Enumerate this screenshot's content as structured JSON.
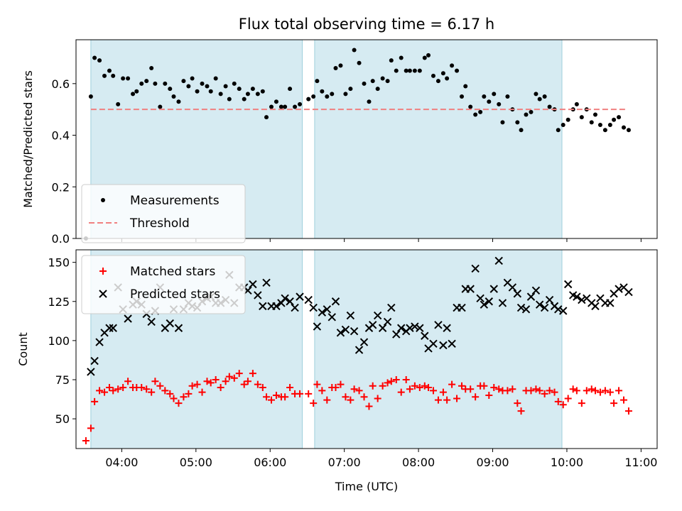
{
  "chart_data": [
    {
      "type": "scatter",
      "title": "Flux total observing time = 6.17 h",
      "xlabel": "",
      "ylabel": "Matched/Predicted stars",
      "xlim": [
        "03:23",
        "11:13"
      ],
      "ylim": [
        0,
        0.77
      ],
      "yticks": [
        0.0,
        0.2,
        0.4,
        0.6
      ],
      "ytick_labels": [
        "0.0",
        "0.2",
        "0.4",
        "0.6"
      ],
      "xticks": [
        "04:00",
        "05:00",
        "06:00",
        "07:00",
        "08:00",
        "09:00",
        "10:00",
        "11:00"
      ],
      "shaded_intervals": [
        [
          "03:35",
          "06:26"
        ],
        [
          "06:36",
          "09:56"
        ]
      ],
      "legend": {
        "location": "lower-left"
      },
      "series": [
        {
          "name": "Measurements",
          "marker": "dot",
          "color": "#000000",
          "x": [
            "03:31",
            "03:35",
            "03:38",
            "03:42",
            "03:46",
            "03:50",
            "03:53",
            "03:57",
            "04:01",
            "04:05",
            "04:09",
            "04:12",
            "04:16",
            "04:20",
            "04:24",
            "04:27",
            "04:31",
            "04:35",
            "04:39",
            "04:42",
            "04:46",
            "04:50",
            "04:54",
            "04:57",
            "05:01",
            "05:05",
            "05:09",
            "05:12",
            "05:16",
            "05:20",
            "05:24",
            "05:27",
            "05:31",
            "05:35",
            "05:39",
            "05:42",
            "05:46",
            "05:50",
            "05:54",
            "05:57",
            "06:01",
            "06:05",
            "06:09",
            "06:12",
            "06:16",
            "06:20",
            "06:24",
            "06:31",
            "06:35",
            "06:38",
            "06:42",
            "06:46",
            "06:50",
            "06:53",
            "06:57",
            "07:01",
            "07:05",
            "07:08",
            "07:12",
            "07:16",
            "07:20",
            "07:23",
            "07:27",
            "07:31",
            "07:35",
            "07:38",
            "07:42",
            "07:46",
            "07:50",
            "07:53",
            "07:57",
            "08:01",
            "08:05",
            "08:08",
            "08:12",
            "08:16",
            "08:20",
            "08:23",
            "08:27",
            "08:31",
            "08:35",
            "08:38",
            "08:42",
            "08:46",
            "08:50",
            "08:53",
            "08:57",
            "09:01",
            "09:05",
            "09:08",
            "09:12",
            "09:16",
            "09:20",
            "09:23",
            "09:27",
            "09:31",
            "09:35",
            "09:38",
            "09:42",
            "09:46",
            "09:50",
            "09:53",
            "09:57",
            "10:01",
            "10:05",
            "10:08",
            "10:12",
            "10:16",
            "10:20",
            "10:23",
            "10:27",
            "10:31",
            "10:35",
            "10:38",
            "10:42",
            "10:46",
            "10:50"
          ],
          "y": [
            0.0,
            0.55,
            0.7,
            0.69,
            0.63,
            0.65,
            0.63,
            0.52,
            0.62,
            0.62,
            0.56,
            0.57,
            0.6,
            0.61,
            0.66,
            0.6,
            0.51,
            0.6,
            0.58,
            0.55,
            0.53,
            0.61,
            0.59,
            0.62,
            0.57,
            0.6,
            0.59,
            0.57,
            0.62,
            0.56,
            0.59,
            0.54,
            0.6,
            0.58,
            0.54,
            0.56,
            0.58,
            0.56,
            0.57,
            0.47,
            0.51,
            0.53,
            0.51,
            0.51,
            0.58,
            0.51,
            0.52,
            0.54,
            0.55,
            0.61,
            0.57,
            0.55,
            0.56,
            0.66,
            0.67,
            0.56,
            0.58,
            0.73,
            0.68,
            0.6,
            0.53,
            0.61,
            0.58,
            0.62,
            0.61,
            0.69,
            0.65,
            0.7,
            0.65,
            0.65,
            0.65,
            0.65,
            0.7,
            0.71,
            0.63,
            0.61,
            0.64,
            0.62,
            0.67,
            0.65,
            0.55,
            0.59,
            0.51,
            0.48,
            0.49,
            0.55,
            0.53,
            0.56,
            0.52,
            0.45,
            0.55,
            0.5,
            0.45,
            0.42,
            0.48,
            0.49,
            0.56,
            0.54,
            0.55,
            0.51,
            0.5,
            0.42,
            0.44,
            0.46,
            0.5,
            0.52,
            0.47,
            0.5,
            0.45,
            0.48,
            0.44,
            0.42,
            0.44,
            0.46,
            0.47,
            0.43,
            0.42
          ]
        },
        {
          "name": "Threshold",
          "type": "line",
          "style": "dashed",
          "color": "#f08080",
          "x": [
            "03:35",
            "10:49"
          ],
          "y": [
            0.5,
            0.5
          ]
        }
      ]
    },
    {
      "type": "scatter",
      "title": "",
      "xlabel": "Time (UTC)",
      "ylabel": "Count",
      "xlim": [
        "03:23",
        "11:13"
      ],
      "ylim": [
        31,
        158
      ],
      "yticks": [
        50,
        75,
        100,
        125,
        150
      ],
      "ytick_labels": [
        "50",
        "75",
        "100",
        "125",
        "150"
      ],
      "xticks": [
        "04:00",
        "05:00",
        "06:00",
        "07:00",
        "08:00",
        "09:00",
        "10:00",
        "11:00"
      ],
      "xtick_labels": [
        "04:00",
        "05:00",
        "06:00",
        "07:00",
        "08:00",
        "09:00",
        "10:00",
        "11:00"
      ],
      "shaded_intervals": [
        [
          "03:35",
          "06:26"
        ],
        [
          "06:36",
          "09:56"
        ]
      ],
      "legend": {
        "location": "top-left"
      },
      "series": [
        {
          "name": "Matched stars",
          "marker": "plus",
          "color": "#ff0000",
          "x": [
            "03:31",
            "03:35",
            "03:38",
            "03:42",
            "03:46",
            "03:50",
            "03:53",
            "03:57",
            "04:01",
            "04:05",
            "04:09",
            "04:12",
            "04:16",
            "04:20",
            "04:24",
            "04:27",
            "04:31",
            "04:35",
            "04:39",
            "04:42",
            "04:46",
            "04:50",
            "04:54",
            "04:57",
            "05:01",
            "05:05",
            "05:09",
            "05:12",
            "05:16",
            "05:20",
            "05:24",
            "05:27",
            "05:31",
            "05:35",
            "05:39",
            "05:42",
            "05:46",
            "05:50",
            "05:54",
            "05:57",
            "06:01",
            "06:05",
            "06:09",
            "06:12",
            "06:16",
            "06:20",
            "06:24",
            "06:31",
            "06:35",
            "06:38",
            "06:42",
            "06:46",
            "06:50",
            "06:53",
            "06:57",
            "07:01",
            "07:05",
            "07:08",
            "07:12",
            "07:16",
            "07:20",
            "07:23",
            "07:27",
            "07:31",
            "07:35",
            "07:38",
            "07:42",
            "07:46",
            "07:50",
            "07:53",
            "07:57",
            "08:01",
            "08:05",
            "08:08",
            "08:12",
            "08:16",
            "08:20",
            "08:23",
            "08:27",
            "08:31",
            "08:35",
            "08:38",
            "08:42",
            "08:46",
            "08:50",
            "08:53",
            "08:57",
            "09:01",
            "09:05",
            "09:08",
            "09:12",
            "09:16",
            "09:20",
            "09:23",
            "09:27",
            "09:31",
            "09:35",
            "09:38",
            "09:42",
            "09:46",
            "09:50",
            "09:53",
            "09:57",
            "10:01",
            "10:05",
            "10:08",
            "10:12",
            "10:16",
            "10:20",
            "10:23",
            "10:27",
            "10:31",
            "10:35",
            "10:38",
            "10:42",
            "10:46",
            "10:50"
          ],
          "y": [
            36,
            44,
            61,
            68,
            67,
            70,
            68,
            69,
            70,
            74,
            70,
            70,
            70,
            69,
            67,
            74,
            71,
            68,
            66,
            63,
            60,
            64,
            66,
            71,
            72,
            67,
            74,
            73,
            75,
            70,
            74,
            77,
            76,
            79,
            72,
            74,
            79,
            72,
            70,
            64,
            62,
            65,
            64,
            64,
            70,
            66,
            66,
            66,
            60,
            72,
            68,
            62,
            70,
            70,
            72,
            64,
            62,
            69,
            68,
            64,
            58,
            71,
            63,
            71,
            73,
            74,
            75,
            67,
            75,
            69,
            71,
            70,
            71,
            70,
            68,
            62,
            67,
            62,
            72,
            63,
            71,
            69,
            69,
            64,
            71,
            71,
            65,
            70,
            69,
            68,
            68,
            69,
            60,
            55,
            68,
            68,
            69,
            68,
            66,
            68,
            67,
            61,
            59,
            63,
            69,
            68,
            60,
            68,
            69,
            68,
            67,
            68,
            67,
            60,
            68,
            62,
            55
          ]
        },
        {
          "name": "Predicted stars",
          "marker": "x",
          "color": "#000000",
          "x": [
            "03:35",
            "03:38",
            "03:42",
            "03:46",
            "03:50",
            "03:53",
            "03:57",
            "04:01",
            "04:05",
            "04:09",
            "04:12",
            "04:16",
            "04:20",
            "04:24",
            "04:27",
            "04:31",
            "04:35",
            "04:39",
            "04:42",
            "04:46",
            "04:50",
            "04:54",
            "04:57",
            "05:01",
            "05:05",
            "05:09",
            "05:12",
            "05:16",
            "05:20",
            "05:24",
            "05:27",
            "05:31",
            "05:35",
            "05:39",
            "05:42",
            "05:46",
            "05:50",
            "05:54",
            "05:57",
            "06:01",
            "06:05",
            "06:09",
            "06:12",
            "06:16",
            "06:20",
            "06:24",
            "06:31",
            "06:35",
            "06:38",
            "06:42",
            "06:46",
            "06:50",
            "06:53",
            "06:57",
            "07:01",
            "07:05",
            "07:08",
            "07:12",
            "07:16",
            "07:20",
            "07:23",
            "07:27",
            "07:31",
            "07:35",
            "07:38",
            "07:42",
            "07:46",
            "07:50",
            "07:53",
            "07:57",
            "08:01",
            "08:05",
            "08:08",
            "08:12",
            "08:16",
            "08:20",
            "08:23",
            "08:27",
            "08:31",
            "08:35",
            "08:38",
            "08:42",
            "08:46",
            "08:50",
            "08:53",
            "08:57",
            "09:01",
            "09:05",
            "09:08",
            "09:12",
            "09:16",
            "09:20",
            "09:23",
            "09:27",
            "09:31",
            "09:35",
            "09:38",
            "09:42",
            "09:46",
            "09:50",
            "09:53",
            "09:57",
            "10:01",
            "10:05",
            "10:08",
            "10:12",
            "10:16",
            "10:20",
            "10:23",
            "10:27",
            "10:31",
            "10:35",
            "10:38",
            "10:42",
            "10:46",
            "10:50"
          ],
          "y": [
            80,
            87,
            99,
            105,
            108,
            108,
            134,
            120,
            114,
            123,
            125,
            123,
            117,
            112,
            119,
            134,
            108,
            111,
            120,
            108,
            120,
            124,
            122,
            121,
            125,
            127,
            128,
            124,
            124,
            126,
            142,
            124,
            134,
            134,
            132,
            136,
            129,
            122,
            137,
            122,
            122,
            124,
            127,
            125,
            121,
            128,
            126,
            121,
            109,
            118,
            120,
            115,
            125,
            105,
            107,
            116,
            106,
            94,
            99,
            108,
            110,
            116,
            108,
            112,
            121,
            104,
            108,
            106,
            108,
            109,
            108,
            103,
            95,
            98,
            110,
            97,
            108,
            98,
            121,
            121,
            133,
            133,
            146,
            127,
            123,
            125,
            133,
            151,
            124,
            137,
            134,
            130,
            121,
            120,
            128,
            132,
            123,
            121,
            126,
            122,
            120,
            119,
            136,
            129,
            128,
            126,
            127,
            124,
            122,
            127,
            124,
            124,
            130,
            133,
            134,
            131
          ]
        }
      ]
    }
  ]
}
